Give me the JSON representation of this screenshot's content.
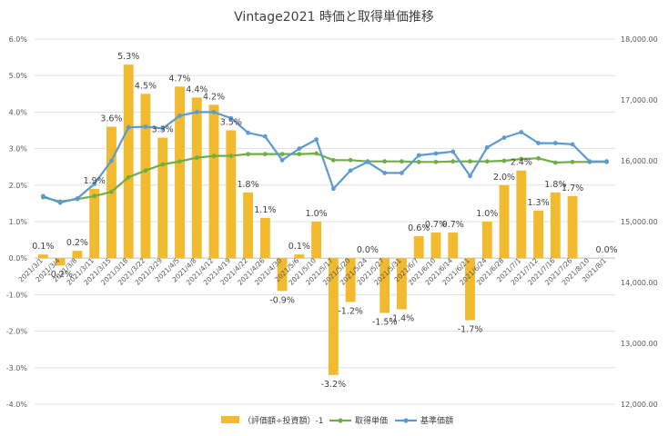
{
  "chart_data": {
    "type": "bar",
    "title": "Vintage2021 時価と取得単価推移",
    "categories": [
      "2021/3/1",
      "2021/3/4",
      "2021/3/8",
      "2021/3/11",
      "2021/3/15",
      "2021/3/18",
      "2021/3/22",
      "2021/3/29",
      "2021/4/5",
      "2021/4/8",
      "2021/4/12",
      "2021/4/19",
      "2021/4/22",
      "2021/4/26",
      "2021/4/30",
      "2021/5/6",
      "2021/5/10",
      "2021/5/17",
      "2021/5/20",
      "2021/5/24",
      "2021/5/27",
      "2021/5/31",
      "2021/6/7",
      "2021/6/10",
      "2021/6/14",
      "2021/6/21",
      "2021/6/24",
      "2021/6/28",
      "2021/7/1",
      "2021/7/12",
      "2021/7/16",
      "2021/7/26",
      "2021/8/10",
      "2021/8/1"
    ],
    "left_axis": {
      "ylim": [
        -4.0,
        6.0
      ],
      "ticks": [
        "-4.0%",
        "-3.0%",
        "-2.0%",
        "-1.0%",
        "0.0%",
        "1.0%",
        "2.0%",
        "3.0%",
        "4.0%",
        "5.0%",
        "6.0%"
      ]
    },
    "right_axis": {
      "ylim": [
        12000,
        18000
      ],
      "ticks": [
        "12,000.00",
        "13,000.00",
        "14,000.00",
        "15,000.00",
        "16,000.00",
        "17,000.00",
        "18,000.00"
      ]
    },
    "series": [
      {
        "name": "（評価額÷投資額）-1",
        "axis": "left",
        "type": "bar",
        "color": "#F2BB2F",
        "values": [
          0.1,
          -0.2,
          0.2,
          1.9,
          3.6,
          5.3,
          4.5,
          3.3,
          4.7,
          4.4,
          4.2,
          3.5,
          1.8,
          1.1,
          -0.9,
          0.1,
          1.0,
          -3.2,
          -1.2,
          0.0,
          -1.5,
          -1.4,
          0.6,
          0.7,
          0.7,
          -1.7,
          1.0,
          2.0,
          2.4,
          1.3,
          1.8,
          1.7,
          0.0,
          0.0
        ],
        "labels": [
          "0.1%",
          "-0.2%",
          "0.2%",
          "1.9%",
          "3.6%",
          "5.3%",
          "4.5%",
          "3.3%",
          "4.7%",
          "4.4%",
          "4.2%",
          "3.5%",
          "1.8%",
          "1.1%",
          "-0.9%",
          "0.1%",
          "1.0%",
          "-3.2%",
          "-1.2%",
          "0.0%",
          "-1.5%",
          "-1.4%",
          "0.6%",
          "0.7%",
          "0.7%",
          "-1.7%",
          "1.0%",
          "2.0%",
          "2.4%",
          "1.3%",
          "1.8%",
          "1.7%",
          "",
          "0.0%"
        ]
      },
      {
        "name": "取得単価",
        "axis": "right",
        "type": "line",
        "color": "#70AD47",
        "values": [
          15400,
          15330,
          15370,
          15420,
          15490,
          15730,
          15840,
          15940,
          15990,
          16050,
          16080,
          16080,
          16110,
          16110,
          16110,
          16110,
          16120,
          16010,
          16010,
          15990,
          15990,
          15990,
          15980,
          15980,
          15990,
          15990,
          15990,
          16000,
          16030,
          16040,
          15970,
          15980,
          15980,
          15980
        ]
      },
      {
        "name": "基準価額",
        "axis": "right",
        "type": "line",
        "color": "#5B9BD5",
        "values": [
          15420,
          15310,
          15380,
          15620,
          16000,
          16550,
          16560,
          16530,
          16740,
          16800,
          16800,
          16700,
          16460,
          16400,
          16010,
          16200,
          16350,
          15540,
          15840,
          15980,
          15800,
          15800,
          16090,
          16120,
          16150,
          15750,
          16220,
          16380,
          16470,
          16290,
          16290,
          16270,
          15990,
          15990
        ]
      }
    ],
    "grid": true,
    "legend_position": "bottom"
  }
}
